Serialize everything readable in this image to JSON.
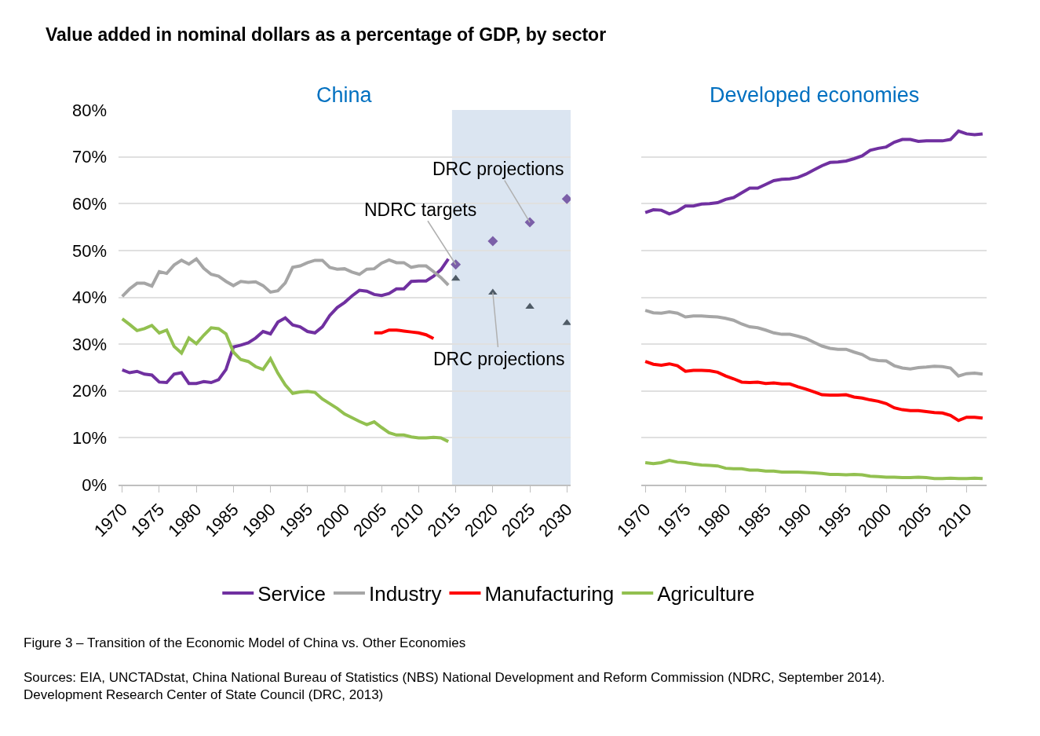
{
  "chart_data": [
    {
      "type": "line",
      "title": "Value added in nominal dollars as a percentage of GDP, by sector",
      "subtitle": "China",
      "xlim": [
        1969.5,
        2030.5
      ],
      "xticks": [
        1970,
        1975,
        1980,
        1985,
        1990,
        1995,
        2000,
        2005,
        2010,
        2015,
        2020,
        2025,
        2030
      ],
      "ylim": [
        0,
        80
      ],
      "yticks": [
        {
          "value": 0,
          "label": "0%"
        },
        {
          "value": 10,
          "label": "10%"
        },
        {
          "value": 20,
          "label": "20%"
        },
        {
          "value": 30,
          "label": "30%"
        },
        {
          "value": 40,
          "label": "40%"
        },
        {
          "value": 50,
          "label": "50%"
        },
        {
          "value": 60,
          "label": "60%"
        },
        {
          "value": 70,
          "label": "70%"
        },
        {
          "value": 80,
          "label": "80%"
        }
      ],
      "grid": "y",
      "legend": "bottom",
      "bands": [
        {
          "axis": "x",
          "from": 2014.5,
          "to": 2030.5,
          "color": "#dbe5f1"
        }
      ],
      "series": [
        {
          "name": "Service",
          "color": "#7030a0",
          "x": [
            1970,
            1971,
            1972,
            1973,
            1974,
            1975,
            1976,
            1977,
            1978,
            1979,
            1980,
            1981,
            1982,
            1983,
            1984,
            1985,
            1986,
            1987,
            1988,
            1989,
            1990,
            1991,
            1992,
            1993,
            1994,
            1995,
            1996,
            1997,
            1998,
            1999,
            2000,
            2001,
            2002,
            2003,
            2004,
            2005,
            2006,
            2007,
            2008,
            2009,
            2010,
            2011,
            2012,
            2013,
            2014
          ],
          "values": [
            24.5,
            23.9,
            24.2,
            23.6,
            23.4,
            21.9,
            21.8,
            23.6,
            23.9,
            21.6,
            21.6,
            22.0,
            21.8,
            22.4,
            24.6,
            29.4,
            29.8,
            30.3,
            31.3,
            32.7,
            32.2,
            34.7,
            35.6,
            34.1,
            33.7,
            32.7,
            32.4,
            33.7,
            36.1,
            37.8,
            38.9,
            40.3,
            41.5,
            41.3,
            40.6,
            40.4,
            40.8,
            41.8,
            41.8,
            43.4,
            43.5,
            43.5,
            44.5,
            45.9,
            48.2
          ]
        },
        {
          "name": "Industry",
          "color": "#a6a6a6",
          "x": [
            1970,
            1971,
            1972,
            1973,
            1974,
            1975,
            1976,
            1977,
            1978,
            1979,
            1980,
            1981,
            1982,
            1983,
            1984,
            1985,
            1986,
            1987,
            1988,
            1989,
            1990,
            1991,
            1992,
            1993,
            1994,
            1995,
            1996,
            1997,
            1998,
            1999,
            2000,
            2001,
            2002,
            2003,
            2004,
            2005,
            2006,
            2007,
            2008,
            2009,
            2010,
            2011,
            2012,
            2013,
            2014
          ],
          "values": [
            40.2,
            41.8,
            43.0,
            43.0,
            42.4,
            45.5,
            45.1,
            46.9,
            47.9,
            47.1,
            48.2,
            46.2,
            44.9,
            44.5,
            43.4,
            42.5,
            43.4,
            43.2,
            43.3,
            42.5,
            41.1,
            41.4,
            43.1,
            46.4,
            46.7,
            47.4,
            47.9,
            47.9,
            46.4,
            46.0,
            46.1,
            45.4,
            44.9,
            46.0,
            46.1,
            47.3,
            48.0,
            47.4,
            47.4,
            46.4,
            46.7,
            46.7,
            45.5,
            44.2,
            42.6
          ]
        },
        {
          "name": "Manufacturing",
          "color": "#ff0000",
          "x": [
            2004,
            2005,
            2006,
            2007,
            2008,
            2009,
            2010,
            2011,
            2012
          ],
          "values": [
            32.4,
            32.4,
            33.0,
            33.0,
            32.8,
            32.6,
            32.4,
            32.0,
            31.2
          ]
        },
        {
          "name": "Agriculture",
          "color": "#92c050",
          "x": [
            1970,
            1971,
            1972,
            1973,
            1974,
            1975,
            1976,
            1977,
            1978,
            1979,
            1980,
            1981,
            1982,
            1983,
            1984,
            1985,
            1986,
            1987,
            1988,
            1989,
            1990,
            1991,
            1992,
            1993,
            1994,
            1995,
            1996,
            1997,
            1998,
            1999,
            2000,
            2001,
            2002,
            2003,
            2004,
            2005,
            2006,
            2007,
            2008,
            2009,
            2010,
            2011,
            2012,
            2013,
            2014
          ],
          "values": [
            35.4,
            34.2,
            32.9,
            33.3,
            34.0,
            32.4,
            33.0,
            29.5,
            28.1,
            31.3,
            30.1,
            31.9,
            33.5,
            33.3,
            32.2,
            28.3,
            26.7,
            26.3,
            25.2,
            24.6,
            26.9,
            23.8,
            21.3,
            19.5,
            19.8,
            19.9,
            19.7,
            18.3,
            17.3,
            16.3,
            15.1,
            14.3,
            13.5,
            12.8,
            13.4,
            12.2,
            11.1,
            10.6,
            10.6,
            10.2,
            10.0,
            10.0,
            10.1,
            10.0,
            9.2
          ]
        },
        {
          "type": "scatter",
          "marker": "diamond",
          "color": "#7b5fa8",
          "x": [
            2015,
            2020,
            2025,
            2030
          ],
          "values": [
            47,
            52,
            56,
            61
          ]
        },
        {
          "type": "scatter",
          "marker": "triangle",
          "color": "#4f5b66",
          "x": [
            2015,
            2020,
            2025,
            2030
          ],
          "values": [
            44,
            41,
            38,
            34.5
          ]
        }
      ],
      "annotations": [
        {
          "text": "NDRC targets",
          "x": 2015,
          "y": 47
        },
        {
          "text": "DRC projections",
          "x": 2025,
          "y": 56
        },
        {
          "text": "DRC projections",
          "x": 2020,
          "y": 41
        },
        "Figure 3 – Transition of the Economic Model of China vs. Other Economies",
        "Sources: EIA, UNCTADstat, China National Bureau of Statistics (NBS) National Development and Reform Commission (NDRC, September 2014). Development Research Center of State Council (DRC, 2013)"
      ]
    },
    {
      "type": "line",
      "title": "Developed economies",
      "xlim": [
        1969.5,
        2012.5
      ],
      "xticks": [
        1970,
        1975,
        1980,
        1985,
        1990,
        1995,
        2000,
        2005,
        2010
      ],
      "ylim": [
        0,
        80
      ],
      "yticks": [
        0,
        10,
        20,
        30,
        40,
        50,
        60,
        70,
        80
      ],
      "tick_labels": "x",
      "grid": "y",
      "series": [
        {
          "color": "#7030a0",
          "x": [
            1970,
            1971,
            1972,
            1973,
            1974,
            1975,
            1976,
            1977,
            1978,
            1979,
            1980,
            1981,
            1982,
            1983,
            1984,
            1985,
            1986,
            1987,
            1988,
            1989,
            1990,
            1991,
            1992,
            1993,
            1994,
            1995,
            1996,
            1997,
            1998,
            1999,
            2000,
            2001,
            2002,
            2003,
            2004,
            2005,
            2006,
            2007,
            2008,
            2009,
            2010,
            2011,
            2012
          ],
          "values": [
            58.1,
            58.7,
            58.6,
            57.8,
            58.4,
            59.5,
            59.5,
            59.9,
            60.0,
            60.2,
            60.9,
            61.3,
            62.3,
            63.3,
            63.3,
            64.1,
            64.9,
            65.2,
            65.3,
            65.6,
            66.3,
            67.2,
            68.1,
            68.8,
            68.9,
            69.1,
            69.6,
            70.2,
            71.4,
            71.8,
            72.1,
            73.1,
            73.7,
            73.7,
            73.3,
            73.4,
            73.4,
            73.4,
            73.7,
            75.5,
            74.9,
            74.7,
            74.9
          ]
        },
        {
          "color": "#a6a6a6",
          "x": [
            1970,
            1971,
            1972,
            1973,
            1974,
            1975,
            1976,
            1977,
            1978,
            1979,
            1980,
            1981,
            1982,
            1983,
            1984,
            1985,
            1986,
            1987,
            1988,
            1989,
            1990,
            1991,
            1992,
            1993,
            1994,
            1995,
            1996,
            1997,
            1998,
            1999,
            2000,
            2001,
            2002,
            2003,
            2004,
            2005,
            2006,
            2007,
            2008,
            2009,
            2010,
            2011,
            2012
          ],
          "values": [
            37.2,
            36.7,
            36.6,
            36.9,
            36.6,
            35.8,
            36.0,
            36.0,
            35.9,
            35.8,
            35.5,
            35.1,
            34.3,
            33.7,
            33.5,
            33.0,
            32.4,
            32.1,
            32.1,
            31.7,
            31.2,
            30.4,
            29.6,
            29.1,
            28.9,
            28.9,
            28.3,
            27.8,
            26.8,
            26.5,
            26.4,
            25.4,
            24.9,
            24.7,
            25.0,
            25.1,
            25.3,
            25.2,
            24.9,
            23.2,
            23.7,
            23.8,
            23.6
          ]
        },
        {
          "color": "#ff0000",
          "x": [
            1970,
            1971,
            1972,
            1973,
            1974,
            1975,
            1976,
            1977,
            1978,
            1979,
            1980,
            1981,
            1982,
            1983,
            1984,
            1985,
            1986,
            1987,
            1988,
            1989,
            1990,
            1991,
            1992,
            1993,
            1994,
            1995,
            1996,
            1997,
            1998,
            1999,
            2000,
            2001,
            2002,
            2003,
            2004,
            2005,
            2006,
            2007,
            2008,
            2009,
            2010,
            2011,
            2012
          ],
          "values": [
            26.3,
            25.7,
            25.5,
            25.8,
            25.4,
            24.2,
            24.4,
            24.4,
            24.3,
            24.0,
            23.2,
            22.6,
            21.9,
            21.8,
            21.9,
            21.6,
            21.7,
            21.5,
            21.5,
            20.9,
            20.4,
            19.8,
            19.2,
            19.1,
            19.1,
            19.2,
            18.7,
            18.5,
            18.1,
            17.8,
            17.3,
            16.4,
            16.0,
            15.8,
            15.8,
            15.6,
            15.4,
            15.3,
            14.8,
            13.7,
            14.4,
            14.4,
            14.2
          ]
        },
        {
          "color": "#92c050",
          "x": [
            1970,
            1971,
            1972,
            1973,
            1974,
            1975,
            1976,
            1977,
            1978,
            1979,
            1980,
            1981,
            1982,
            1983,
            1984,
            1985,
            1986,
            1987,
            1988,
            1989,
            1990,
            1991,
            1992,
            1993,
            1994,
            1995,
            1996,
            1997,
            1998,
            1999,
            2000,
            2001,
            2002,
            2003,
            2004,
            2005,
            2006,
            2007,
            2008,
            2009,
            2010,
            2011,
            2012
          ],
          "values": [
            4.7,
            4.5,
            4.7,
            5.2,
            4.8,
            4.7,
            4.4,
            4.2,
            4.1,
            4.0,
            3.5,
            3.4,
            3.4,
            3.1,
            3.1,
            2.9,
            2.9,
            2.7,
            2.7,
            2.7,
            2.6,
            2.5,
            2.4,
            2.2,
            2.2,
            2.1,
            2.2,
            2.1,
            1.8,
            1.7,
            1.6,
            1.6,
            1.5,
            1.5,
            1.6,
            1.5,
            1.3,
            1.3,
            1.4,
            1.3,
            1.3,
            1.4,
            1.3
          ]
        }
      ]
    }
  ]
}
